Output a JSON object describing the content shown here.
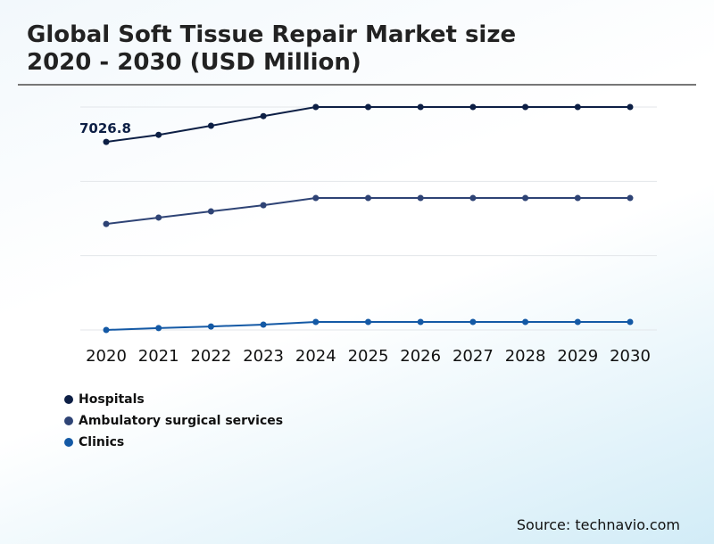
{
  "chart_data": {
    "type": "line",
    "title": "Global Soft Tissue Repair Market size 2020 - 2030 (USD Million)",
    "title_lines": [
      "Global Soft Tissue Repair Market size",
      "2020 - 2030 (USD Million)"
    ],
    "x": [
      "2020",
      "2021",
      "2022",
      "2023",
      "2024",
      "2025",
      "2026",
      "2027",
      "2028",
      "2029",
      "2030"
    ],
    "ylim": [
      0,
      8330
    ],
    "grid": true,
    "legend_position": "bottom-left",
    "series": [
      {
        "name": "Hospitals",
        "color": "#0d1f45",
        "values": [
          7026.8,
          7290,
          7630,
          7990,
          8330,
          8330,
          8330,
          8330,
          8330,
          8330,
          8330
        ]
      },
      {
        "name": "Ambulatory surgical services",
        "color": "#2e4375",
        "values": [
          3960,
          4200,
          4430,
          4660,
          4930,
          4930,
          4930,
          4930,
          4930,
          4930,
          4930
        ]
      },
      {
        "name": "Clinics",
        "color": "#1459a5",
        "values": [
          0,
          70,
          130,
          200,
          300,
          300,
          300,
          300,
          300,
          300,
          300
        ]
      }
    ],
    "annotations": [
      {
        "series": 0,
        "x": "2020",
        "label": "7026.8"
      }
    ]
  },
  "source": "Source: technavio.com"
}
